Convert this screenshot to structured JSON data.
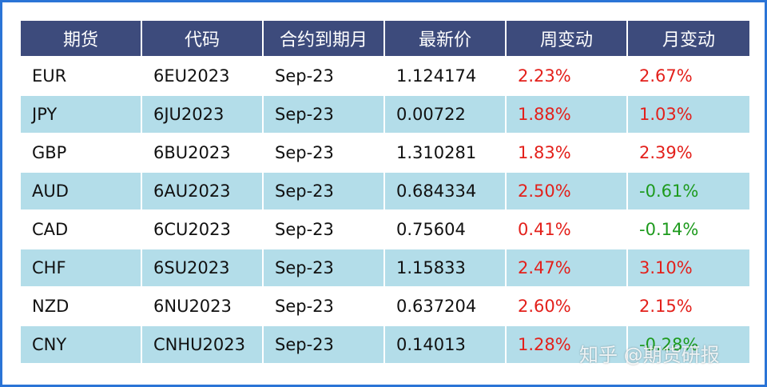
{
  "table": {
    "header": [
      "期货",
      "代码",
      "合约到期月",
      "最新价",
      "周变动",
      "月变动"
    ],
    "rows": [
      [
        "EUR",
        "6EU2023",
        "Sep-23",
        "1.124174",
        "2.23%",
        "2.67%"
      ],
      [
        "JPY",
        "6JU2023",
        "Sep-23",
        "0.00722",
        "1.88%",
        "1.03%"
      ],
      [
        "GBP",
        "6BU2023",
        "Sep-23",
        "1.310281",
        "1.83%",
        "2.39%"
      ],
      [
        "AUD",
        "6AU2023",
        "Sep-23",
        "0.684334",
        "2.50%",
        "-0.61%"
      ],
      [
        "CAD",
        "6CU2023",
        "Sep-23",
        "0.75604",
        "0.41%",
        "-0.14%"
      ],
      [
        "CHF",
        "6SU2023",
        "Sep-23",
        "1.15833",
        "2.47%",
        "3.10%"
      ],
      [
        "NZD",
        "6NU2023",
        "Sep-23",
        "0.637204",
        "2.60%",
        "2.15%"
      ],
      [
        "CNY",
        "CNHU2023",
        "Sep-23",
        "0.14013",
        "1.28%",
        "-0.28%"
      ]
    ],
    "header_color": "#3d4b7c",
    "stripe_color": "#b3dde9",
    "positive_color": "#e3201b",
    "negative_color": "#1d9a1d"
  },
  "watermark": "知乎 @期货研报"
}
